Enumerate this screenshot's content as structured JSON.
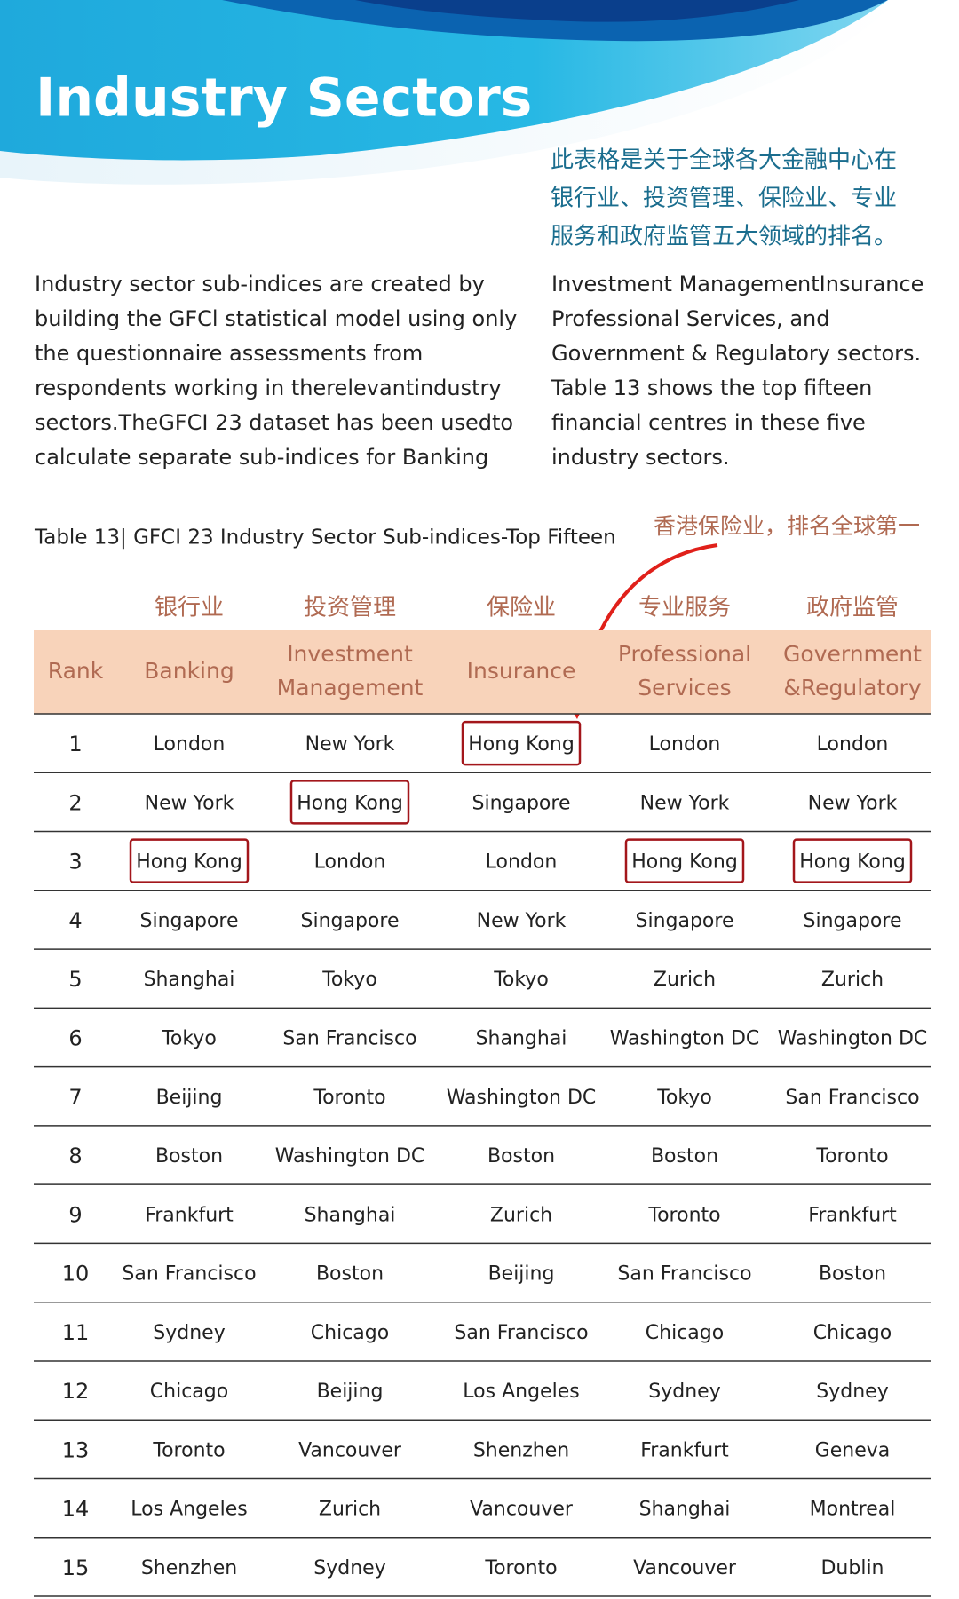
{
  "header": {
    "title": "Industry Sectors"
  },
  "intro": {
    "cn": [
      "此表格是关于全球各大金融中心在",
      "银行业、投资管理、保险业、专业",
      "服务和政府监管五大领域的排名。"
    ],
    "left": [
      "Industry sector sub-indices are created by",
      "building the GFCl statistical model using only",
      "the questionnaire assessments from",
      "respondents working in therelevantindustry",
      "sectors.TheGFCI 23 dataset has been usedto",
      "calculate separate sub-indices for Banking"
    ],
    "right": [
      "Investment ManagementInsurance",
      "Professional Services, and",
      "Government & Regulatory sectors.",
      "Table 13 shows the top fifteen",
      "financial centres in these five",
      "industry sectors."
    ]
  },
  "table": {
    "caption": "Table 13| GFCI 23 Industry Sector Sub-indices-Top Fifteen",
    "annotation": "香港保险业，排名全球第一",
    "header_cn": [
      "银行业",
      "投资管理",
      "保险业",
      "专业服务",
      "政府监管"
    ],
    "header_en": [
      [
        "Rank"
      ],
      [
        "Banking"
      ],
      [
        "Investment",
        "Management"
      ],
      [
        "Insurance"
      ],
      [
        "Professional",
        "Services"
      ],
      [
        "Government",
        "&Regulatory"
      ]
    ],
    "rows": [
      [
        1,
        "London",
        "New York",
        "Hong Kong",
        "London",
        "London"
      ],
      [
        2,
        "New York",
        "Hong Kong",
        "Singapore",
        "New York",
        "New York"
      ],
      [
        3,
        "Hong Kong",
        "London",
        "London",
        "Hong Kong",
        "Hong Kong"
      ],
      [
        4,
        "Singapore",
        "Singapore",
        "New York",
        "Singapore",
        "Singapore"
      ],
      [
        5,
        "Shanghai",
        "Tokyo",
        "Tokyo",
        "Zurich",
        "Zurich"
      ],
      [
        6,
        "Tokyo",
        "San Francisco",
        "Shanghai",
        "Washington DC",
        "Washington DC"
      ],
      [
        7,
        "Beijing",
        "Toronto",
        "Washington DC",
        "Tokyo",
        "San Francisco"
      ],
      [
        8,
        "Boston",
        "Washington DC",
        "Boston",
        "Boston",
        "Toronto"
      ],
      [
        9,
        "Frankfurt",
        "Shanghai",
        "Zurich",
        "Toronto",
        "Frankfurt"
      ],
      [
        10,
        "San Francisco",
        "Boston",
        "Beijing",
        "San Francisco",
        "Boston"
      ],
      [
        11,
        "Sydney",
        "Chicago",
        "San Francisco",
        "Chicago",
        "Chicago"
      ],
      [
        12,
        "Chicago",
        "Beijing",
        "Los Angeles",
        "Sydney",
        "Sydney"
      ],
      [
        13,
        "Toronto",
        "Vancouver",
        "Shenzhen",
        "Frankfurt",
        "Geneva"
      ],
      [
        14,
        "Los Angeles",
        "Zurich",
        "Vancouver",
        "Shanghai",
        "Montreal"
      ],
      [
        15,
        "Shenzhen",
        "Sydney",
        "Toronto",
        "Vancouver",
        "Dublin"
      ]
    ]
  }
}
